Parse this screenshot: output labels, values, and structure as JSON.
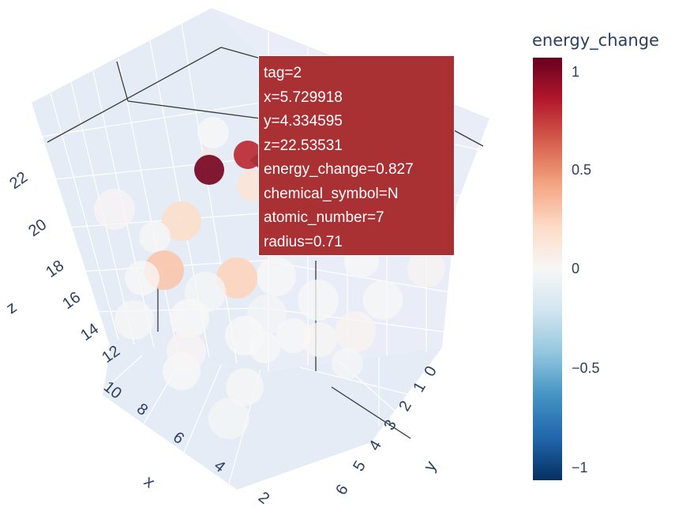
{
  "colorbar": {
    "title": "energy_change",
    "ticks": [
      "1",
      "0.5",
      "0",
      "−0.5",
      "−1"
    ],
    "range": [
      -1.1,
      1.1
    ],
    "colors": [
      "#67001f",
      "#b2182b",
      "#d6604d",
      "#f4a582",
      "#fddbc7",
      "#f7f7f7",
      "#d1e5f0",
      "#92c5de",
      "#4393c3",
      "#2166ac",
      "#053061"
    ]
  },
  "axes": {
    "x": {
      "title": "x",
      "ticks": [
        "10",
        "8",
        "6",
        "4",
        "2"
      ]
    },
    "y": {
      "title": "y",
      "ticks": [
        "0",
        "1",
        "2",
        "3",
        "4",
        "5",
        "6"
      ]
    },
    "z": {
      "title": "z",
      "ticks": [
        "12",
        "14",
        "16",
        "18",
        "20",
        "22"
      ]
    }
  },
  "tooltip": {
    "lines": [
      "tag=2",
      "x=5.729918",
      "y=4.334595",
      "z=22.53531",
      "energy_change=0.827",
      "chemical_symbol=N",
      "atomic_number=7",
      "radius=0.71"
    ]
  },
  "chart_data": {
    "type": "scatter",
    "mode": "3d",
    "color_variable": "energy_change",
    "colorscale": "RdBu_r",
    "xlabel": "x",
    "ylabel": "y",
    "zlabel": "z",
    "color_range": [
      -1.1,
      1.1
    ],
    "hovered_point": {
      "tag": 2,
      "x": 5.729918,
      "y": 4.334595,
      "z": 22.53531,
      "energy_change": 0.827,
      "chemical_symbol": "N",
      "atomic_number": 7,
      "radius": 0.71
    },
    "points": [
      {
        "energy_change": 1.05
      },
      {
        "energy_change": 0.827
      },
      {
        "energy_change": 0.2
      },
      {
        "energy_change": 0.3
      },
      {
        "energy_change": 0.25
      },
      {
        "energy_change": 0.15
      },
      {
        "energy_change": 0.1
      },
      {
        "energy_change": 0.02
      },
      {
        "energy_change": 0.0
      },
      {
        "energy_change": 0.01
      },
      {
        "energy_change": 0.0
      },
      {
        "energy_change": -0.01
      },
      {
        "energy_change": 0.01
      },
      {
        "energy_change": 0.0
      },
      {
        "energy_change": -0.02
      },
      {
        "energy_change": 0.02
      },
      {
        "energy_change": 0.0
      },
      {
        "energy_change": 0.0
      },
      {
        "energy_change": 0.01
      },
      {
        "energy_change": -0.01
      },
      {
        "energy_change": 0.0
      },
      {
        "energy_change": 0.03
      },
      {
        "energy_change": 0.0
      },
      {
        "energy_change": 0.02
      },
      {
        "energy_change": 0.0
      },
      {
        "energy_change": 0.01
      },
      {
        "energy_change": 0.0
      },
      {
        "energy_change": 0.0
      },
      {
        "energy_change": 0.02
      },
      {
        "energy_change": 0.0
      },
      {
        "energy_change": -0.01
      },
      {
        "energy_change": 0.0
      }
    ]
  }
}
